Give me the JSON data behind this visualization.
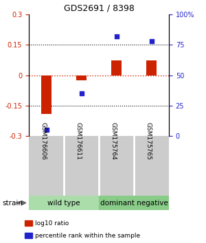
{
  "title": "GDS2691 / 8398",
  "samples": [
    "GSM176606",
    "GSM176611",
    "GSM175764",
    "GSM175765"
  ],
  "log10_ratio": [
    -0.19,
    -0.025,
    0.075,
    0.075
  ],
  "percentile_rank": [
    5,
    35,
    82,
    78
  ],
  "ylim_left": [
    -0.3,
    0.3
  ],
  "ylim_right": [
    0,
    100
  ],
  "yticks_left": [
    -0.3,
    -0.15,
    0,
    0.15,
    0.3
  ],
  "yticks_left_labels": [
    "-0.3",
    "-0.15",
    "0",
    "0.15",
    "0.3"
  ],
  "yticks_right": [
    0,
    25,
    50,
    75,
    100
  ],
  "yticks_right_labels": [
    "0",
    "25",
    "50",
    "75",
    "100%"
  ],
  "dotted_lines": [
    -0.15,
    0.15
  ],
  "zero_line_y": 0,
  "bar_color": "#cc2200",
  "dot_color": "#2222cc",
  "group1_label": "wild type",
  "group2_label": "dominant negative",
  "group1_color": "#aaddaa",
  "group2_color": "#88cc88",
  "strain_label": "strain",
  "legend_bar_label": "log10 ratio",
  "legend_dot_label": "percentile rank within the sample",
  "bg_color": "#ffffff",
  "sample_box_color": "#cccccc",
  "bar_width": 0.3
}
